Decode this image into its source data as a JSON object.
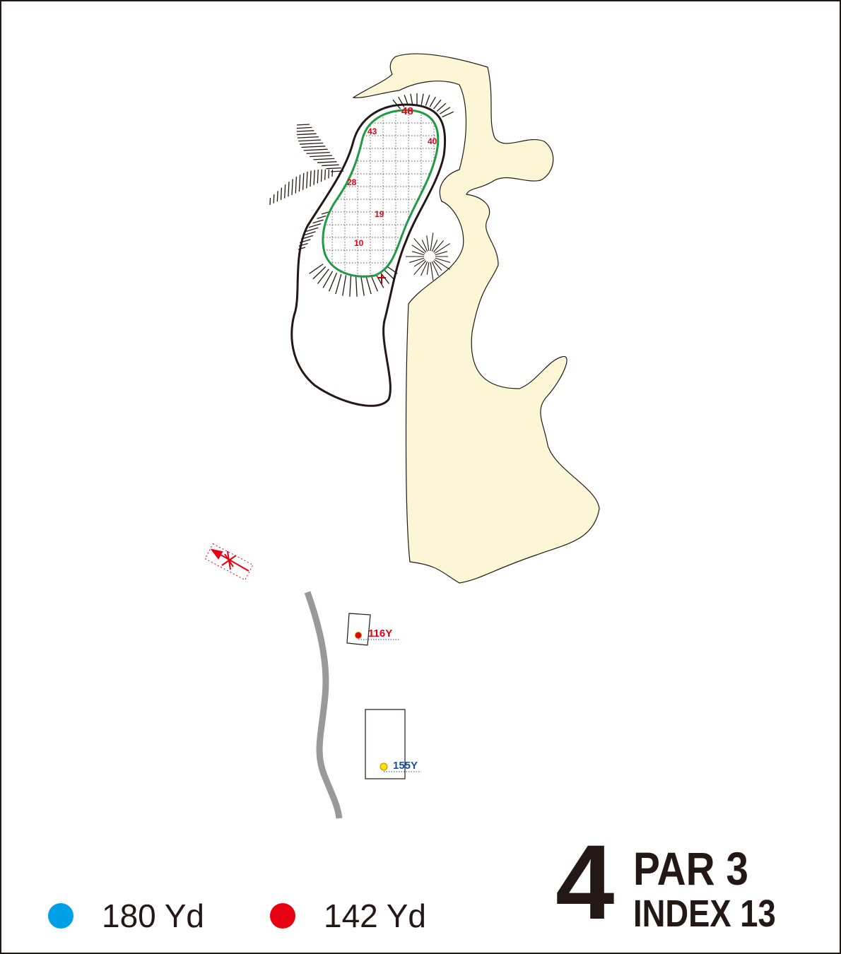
{
  "colors": {
    "rough": "#fbf7d6",
    "outline": "#231815",
    "green_edge": "#1f9b45",
    "grid_numbers": "#e60012",
    "path": "#999999",
    "blue_tee": "#009fe8",
    "red_tee": "#e60012",
    "yellow_marker": "#ffe100",
    "yardage_blue": "#1d4fa0",
    "yardage_red": "#e60012"
  },
  "green": {
    "grid_numbers": [
      "48",
      "43",
      "40",
      "28",
      "19",
      "10"
    ]
  },
  "markers": {
    "red_yardage": "116Y",
    "blue_yardage": "155Y"
  },
  "legend": [
    {
      "color": "#009fe8",
      "label": "180 Yd"
    },
    {
      "color": "#e60012",
      "label": "142 Yd"
    }
  ],
  "hole": {
    "number": "4",
    "par": "PAR 3",
    "index": "INDEX 13"
  }
}
